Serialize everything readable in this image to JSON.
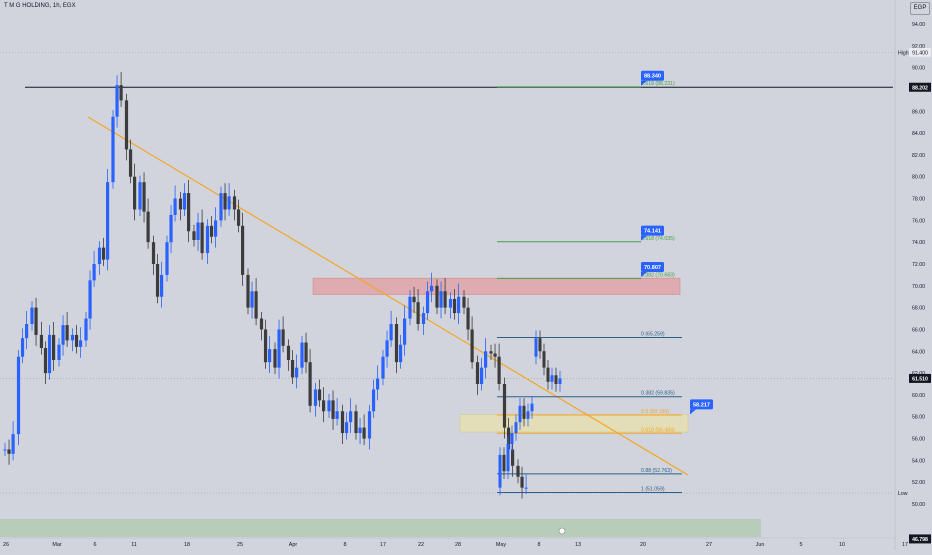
{
  "header": {
    "symbol_title": "T M G HOLDING, 1h, EGX",
    "currency": "EGP"
  },
  "chart_data": {
    "type": "candlestick",
    "title": "T M G HOLDING, 1h, EGX",
    "currency": "EGP",
    "y_ticks": [
      94,
      92,
      90,
      88,
      86,
      84,
      82,
      80,
      78,
      76,
      74,
      72,
      70,
      68,
      66,
      64,
      62,
      60,
      58,
      56,
      54,
      52,
      50
    ],
    "ylim": [
      48.5,
      95.5
    ],
    "x_ticks": [
      {
        "label": "26",
        "t": 0
      },
      {
        "label": "Mar",
        "t": 3
      },
      {
        "label": "6",
        "t": 8
      },
      {
        "label": "11",
        "t": 13
      },
      {
        "label": "18",
        "t": 20
      },
      {
        "label": "25",
        "t": 27
      },
      {
        "label": "Apr",
        "t": 33
      },
      {
        "label": "8",
        "t": 40
      },
      {
        "label": "17",
        "t": 49
      },
      {
        "label": "22",
        "t": 54
      },
      {
        "label": "28",
        "t": 60
      },
      {
        "label": "May",
        "t": 66
      },
      {
        "label": "8",
        "t": 73
      },
      {
        "label": "13",
        "t": 78
      },
      {
        "label": "20",
        "t": 85
      },
      {
        "label": "27",
        "t": 92
      },
      {
        "label": "Jun",
        "t": 97
      },
      {
        "label": "5",
        "t": 101
      },
      {
        "label": "10",
        "t": 106
      },
      {
        "label": "17",
        "t": 113
      }
    ],
    "grid": "off",
    "close": [
      [
        0.0,
        55.0
      ],
      [
        0.3,
        54.6
      ],
      [
        0.6,
        56.4
      ],
      [
        1.0,
        63.5
      ],
      [
        1.3,
        65.2
      ],
      [
        1.6,
        66.5
      ],
      [
        2.0,
        68.0
      ],
      [
        2.3,
        65.5
      ],
      [
        2.7,
        64.3
      ],
      [
        3.0,
        62.0
      ],
      [
        3.3,
        65.5
      ],
      [
        3.6,
        63.2
      ],
      [
        4.0,
        64.6
      ],
      [
        4.3,
        66.4
      ],
      [
        4.6,
        65.0
      ],
      [
        5.0,
        65.5
      ],
      [
        5.3,
        64.4
      ],
      [
        5.6,
        65.0
      ],
      [
        6.0,
        67.0
      ],
      [
        6.3,
        70.5
      ],
      [
        6.6,
        72.0
      ],
      [
        7.0,
        73.5
      ],
      [
        7.3,
        72.4
      ],
      [
        7.6,
        79.5
      ],
      [
        8.0,
        85.5
      ],
      [
        8.3,
        88.4
      ],
      [
        8.6,
        87.0
      ],
      [
        9.0,
        82.5
      ],
      [
        9.3,
        80.0
      ],
      [
        9.6,
        77.0
      ],
      [
        10.0,
        79.5
      ],
      [
        10.3,
        76.8
      ],
      [
        10.6,
        74.0
      ],
      [
        11.0,
        72.0
      ],
      [
        11.3,
        69.0
      ],
      [
        11.6,
        71.0
      ],
      [
        12.0,
        74.0
      ],
      [
        12.3,
        76.5
      ],
      [
        12.6,
        78.0
      ],
      [
        13.0,
        77.0
      ],
      [
        13.3,
        78.5
      ],
      [
        13.6,
        75.0
      ],
      [
        14.0,
        74.2
      ],
      [
        14.3,
        75.8
      ],
      [
        14.6,
        73.0
      ],
      [
        15.0,
        75.5
      ],
      [
        15.3,
        74.5
      ],
      [
        15.6,
        76.0
      ],
      [
        16.0,
        78.5
      ],
      [
        16.3,
        77.0
      ],
      [
        16.6,
        78.2
      ],
      [
        17.0,
        77.0
      ],
      [
        17.3,
        75.5
      ],
      [
        17.6,
        71.0
      ],
      [
        18.0,
        68.0
      ],
      [
        18.3,
        69.5
      ],
      [
        18.6,
        67.0
      ],
      [
        19.0,
        66.0
      ],
      [
        19.3,
        63.0
      ],
      [
        19.6,
        64.2
      ],
      [
        20.0,
        62.5
      ],
      [
        20.3,
        66.0
      ],
      [
        20.6,
        64.5
      ],
      [
        21.0,
        63.2
      ],
      [
        21.3,
        61.6
      ],
      [
        21.6,
        62.5
      ],
      [
        22.0,
        64.8
      ],
      [
        22.3,
        63.0
      ],
      [
        22.6,
        59.0
      ],
      [
        23.0,
        60.5
      ],
      [
        23.3,
        59.5
      ],
      [
        23.6,
        58.5
      ],
      [
        24.0,
        59.5
      ],
      [
        24.3,
        57.8
      ],
      [
        24.6,
        58.5
      ],
      [
        25.0,
        56.5
      ],
      [
        25.3,
        57.5
      ],
      [
        25.6,
        58.5
      ],
      [
        26.0,
        56.5
      ],
      [
        26.3,
        57.0
      ],
      [
        26.6,
        56.0
      ],
      [
        27.0,
        58.5
      ],
      [
        27.3,
        60.5
      ],
      [
        27.6,
        61.5
      ],
      [
        28.0,
        63.5
      ],
      [
        28.3,
        65.0
      ],
      [
        28.6,
        66.5
      ],
      [
        29.0,
        63.0
      ],
      [
        29.3,
        64.6
      ],
      [
        29.6,
        67.0
      ],
      [
        30.0,
        69.0
      ],
      [
        30.3,
        68.5
      ],
      [
        30.6,
        66.5
      ],
      [
        31.0,
        67.5
      ],
      [
        31.3,
        69.5
      ],
      [
        31.6,
        70.0
      ],
      [
        32.0,
        68.0
      ],
      [
        32.3,
        69.5
      ],
      [
        32.6,
        68.0
      ],
      [
        33.0,
        68.8
      ],
      [
        33.3,
        67.5
      ],
      [
        33.6,
        69.0
      ],
      [
        34.0,
        68.0
      ],
      [
        34.3,
        66.0
      ],
      [
        34.6,
        63.0
      ],
      [
        35.0,
        61.0
      ],
      [
        35.3,
        62.5
      ],
      [
        35.6,
        64.0
      ],
      [
        36.0,
        63.8
      ],
      [
        36.3,
        63.5
      ],
      [
        36.6,
        61.0
      ],
      [
        37.0,
        57.0
      ],
      [
        37.3,
        55.0
      ],
      [
        37.6,
        53.5
      ],
      [
        38.0,
        52.5
      ],
      [
        38.3,
        51.5
      ],
      [
        38.6,
        51.5
      ]
    ],
    "levels": [
      {
        "label": "1.618 (88.231)",
        "price": 88.231,
        "color": "#43a047"
      },
      {
        "label": "0.618 (74.035)",
        "price": 74.035,
        "color": "#43a047"
      },
      {
        "label": "0.382 (70.683)",
        "price": 70.683,
        "color": "#43a047"
      },
      {
        "label": "0 (65.259)",
        "price": 65.259,
        "color": "#2e5f8a"
      },
      {
        "label": "0.382 (59.835)",
        "price": 59.835,
        "color": "#2e5f8a"
      },
      {
        "label": "0.5 (58.159)",
        "price": 58.159,
        "color": "#f5a623"
      },
      {
        "label": "0.618 (56.484)",
        "price": 56.484,
        "color": "#f5a623"
      },
      {
        "label": "0.88 (52.763)",
        "price": 52.763,
        "color": "#2e5f8a"
      },
      {
        "label": "1 (51.059)",
        "price": 51.059,
        "color": "#2e5f8a"
      }
    ],
    "target_badges": [
      {
        "label": "88.340",
        "price": 88.34
      },
      {
        "label": "74.141",
        "price": 74.141
      },
      {
        "label": "70.807",
        "price": 70.807
      },
      {
        "label": "58.217",
        "price": 58.217
      }
    ],
    "horizontal_line_price": 88.202,
    "axis_badges": [
      {
        "label": "High",
        "price": 91.4,
        "value": "91.400",
        "style": "light"
      },
      {
        "label": "",
        "price": 88.202,
        "value": "88.202",
        "style": "dark"
      },
      {
        "label": "",
        "price": 61.51,
        "value": "61.510",
        "style": "dark"
      },
      {
        "label": "Low",
        "price": 51.0,
        "value": "",
        "style": "none"
      },
      {
        "label": "",
        "price": 46.798,
        "value": "46.798",
        "style": "dark"
      }
    ],
    "zones": [
      {
        "name": "supply",
        "price_low": 69.2,
        "price_high": 70.7,
        "color": "#e0a3a8"
      },
      {
        "name": "demand",
        "price_low": 56.6,
        "price_high": 58.2,
        "color": "#e6dfb0"
      }
    ],
    "colors": {
      "up": "#2962ff",
      "down": "#3c3c3c",
      "trendline": "#f5a623",
      "background": "#d1d4dc",
      "badge_blue": "#2962ff",
      "axis_dark": "#131722"
    }
  }
}
